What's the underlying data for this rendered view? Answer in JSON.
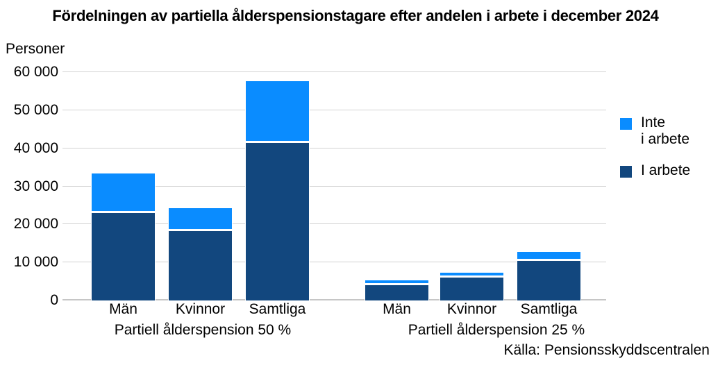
{
  "title": "Fördelningen av partiella ålderspensionstagare efter andelen i arbete i december 2024",
  "y_axis_title": "Personer",
  "source_note": "Källa: Pensionsskyddscentralen",
  "legend": {
    "items": [
      {
        "label": "Inte\ni arbete",
        "series": "Inte i arbete",
        "color": "#0a8cff"
      },
      {
        "label": "I arbete",
        "series": "I arbete",
        "color": "#12477e"
      }
    ]
  },
  "chart_data": {
    "type": "bar",
    "stacked": true,
    "title": "Fördelningen av partiella ålderspensionstagare efter andelen i arbete i december 2024",
    "ylabel": "Personer",
    "ylim": [
      0,
      60000
    ],
    "ytick_step": 10000,
    "ytick_labels": [
      "0",
      "10 000",
      "20 000",
      "30 000",
      "40 000",
      "50 000",
      "60 000"
    ],
    "grid": true,
    "legend_position": "right",
    "groups": [
      {
        "label": "Partiell ålderspension 50 %",
        "categories": [
          "Män",
          "Kvinnor",
          "Samtliga"
        ]
      },
      {
        "label": "Partiell ålderspension 25 %",
        "categories": [
          "Män",
          "Kvinnor",
          "Samtliga"
        ]
      }
    ],
    "series": [
      {
        "name": "I arbete",
        "color": "#12477e",
        "values": [
          23200,
          18400,
          41600,
          4200,
          6300,
          10500
        ]
      },
      {
        "name": "Inte i arbete",
        "color": "#0a8cff",
        "values": [
          10100,
          5900,
          16000,
          1100,
          1100,
          2200
        ]
      }
    ]
  },
  "colors": {
    "in_work": "#12477e",
    "not_in_work": "#0a8cff",
    "gridline": "#d2d2d2",
    "axis_line": "#c6c6c6",
    "background": "#ffffff",
    "text": "#000000"
  }
}
